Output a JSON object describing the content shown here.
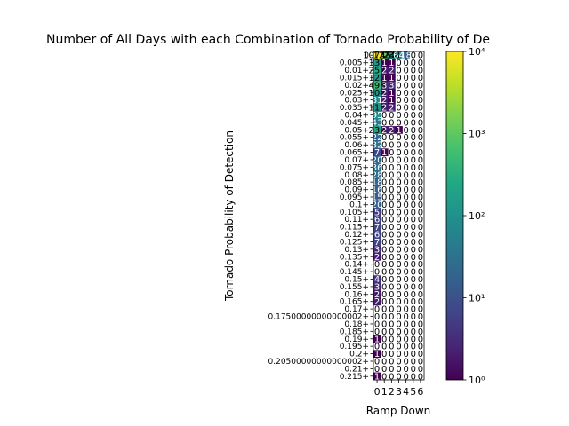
{
  "chart_data": {
    "type": "heatmap",
    "title": "Number of All Days with each Combination of Tornado Probability of De",
    "xlabel": "Ramp Down",
    "ylabel": "Tornado Probability of Detection",
    "x_ticks": [
      "0",
      "1",
      "2",
      "3",
      "4",
      "5",
      "6"
    ],
    "y_ticks": [
      "0",
      "0.005+",
      "0.01+",
      "0.015+",
      "0.02+",
      "0.025+",
      "0.03+",
      "0.035+",
      "0.04+",
      "0.045+",
      "0.05+",
      "0.055+",
      "0.06+",
      "0.065+",
      "0.07+",
      "0.075+",
      "0.08+",
      "0.085+",
      "0.09+",
      "0.095+",
      "0.1+",
      "0.105+",
      "0.11+",
      "0.115+",
      "0.12+",
      "0.125+",
      "0.13+",
      "0.135+",
      "0.14+",
      "0.145+",
      "0.15+",
      "0.155+",
      "0.16+",
      "0.165+",
      "0.17+",
      "0.17500000000000002+",
      "0.18+",
      "0.185+",
      "0.19+",
      "0.195+",
      "0.2+",
      "0.20500000000000002+",
      "0.21+",
      "0.215+"
    ],
    "scale": "log",
    "colormap": "viridis",
    "vmin": 1,
    "vmax": 10000,
    "colorbar_ticks": [
      {
        "value": 1,
        "label": "10⁰"
      },
      {
        "value": 10,
        "label": "10¹"
      },
      {
        "value": 100,
        "label": "10²"
      },
      {
        "value": 1000,
        "label": "10³"
      },
      {
        "value": 10000,
        "label": "10⁴"
      }
    ],
    "values": [
      [
        10745,
        1224,
        238,
        64,
        18,
        0,
        0
      ],
      [
        133,
        1,
        1,
        0,
        0,
        0,
        0
      ],
      [
        257,
        2,
        2,
        0,
        0,
        0,
        0
      ],
      [
        120,
        1,
        1,
        0,
        0,
        0,
        0
      ],
      [
        498,
        3,
        3,
        0,
        0,
        0,
        0
      ],
      [
        104,
        2,
        1,
        0,
        0,
        0,
        0
      ],
      [
        81,
        2,
        1,
        0,
        0,
        0,
        0
      ],
      [
        113,
        2,
        2,
        0,
        0,
        0,
        0
      ],
      [
        95,
        0,
        0,
        0,
        0,
        0,
        0
      ],
      [
        43,
        0,
        0,
        0,
        0,
        0,
        0
      ],
      [
        232,
        2,
        2,
        1,
        0,
        0,
        0
      ],
      [
        22,
        0,
        0,
        0,
        0,
        0,
        0
      ],
      [
        32,
        0,
        0,
        0,
        0,
        0,
        0
      ],
      [
        7,
        1,
        0,
        0,
        0,
        0,
        0
      ],
      [
        20,
        0,
        0,
        0,
        0,
        0,
        0
      ],
      [
        36,
        0,
        0,
        0,
        0,
        0,
        0
      ],
      [
        28,
        0,
        0,
        0,
        0,
        0,
        0
      ],
      [
        18,
        0,
        0,
        0,
        0,
        0,
        0
      ],
      [
        16,
        0,
        0,
        0,
        0,
        0,
        0
      ],
      [
        15,
        0,
        0,
        0,
        0,
        0,
        0
      ],
      [
        20,
        0,
        0,
        0,
        0,
        0,
        0
      ],
      [
        5,
        0,
        0,
        0,
        0,
        0,
        0
      ],
      [
        6,
        0,
        0,
        0,
        0,
        0,
        0
      ],
      [
        7,
        0,
        0,
        0,
        0,
        0,
        0
      ],
      [
        6,
        0,
        0,
        0,
        0,
        0,
        0
      ],
      [
        7,
        0,
        0,
        0,
        0,
        0,
        0
      ],
      [
        3,
        0,
        0,
        0,
        0,
        0,
        0
      ],
      [
        2,
        0,
        0,
        0,
        0,
        0,
        0
      ],
      [
        0,
        0,
        0,
        0,
        0,
        0,
        0
      ],
      [
        0,
        0,
        0,
        0,
        0,
        0,
        0
      ],
      [
        4,
        0,
        0,
        0,
        0,
        0,
        0
      ],
      [
        3,
        0,
        0,
        0,
        0,
        0,
        0
      ],
      [
        2,
        0,
        0,
        0,
        0,
        0,
        0
      ],
      [
        2,
        0,
        0,
        0,
        0,
        0,
        0
      ],
      [
        0,
        0,
        0,
        0,
        0,
        0,
        0
      ],
      [
        0,
        0,
        0,
        0,
        0,
        0,
        0
      ],
      [
        0,
        0,
        0,
        0,
        0,
        0,
        0
      ],
      [
        0,
        0,
        0,
        0,
        0,
        0,
        0
      ],
      [
        1,
        0,
        0,
        0,
        0,
        0,
        0
      ],
      [
        0,
        0,
        0,
        0,
        0,
        0,
        0
      ],
      [
        1,
        0,
        0,
        0,
        0,
        0,
        0
      ],
      [
        0,
        0,
        0,
        0,
        0,
        0,
        0
      ],
      [
        0,
        0,
        0,
        0,
        0,
        0,
        0
      ],
      [
        1,
        0,
        0,
        0,
        0,
        0,
        0
      ]
    ]
  }
}
